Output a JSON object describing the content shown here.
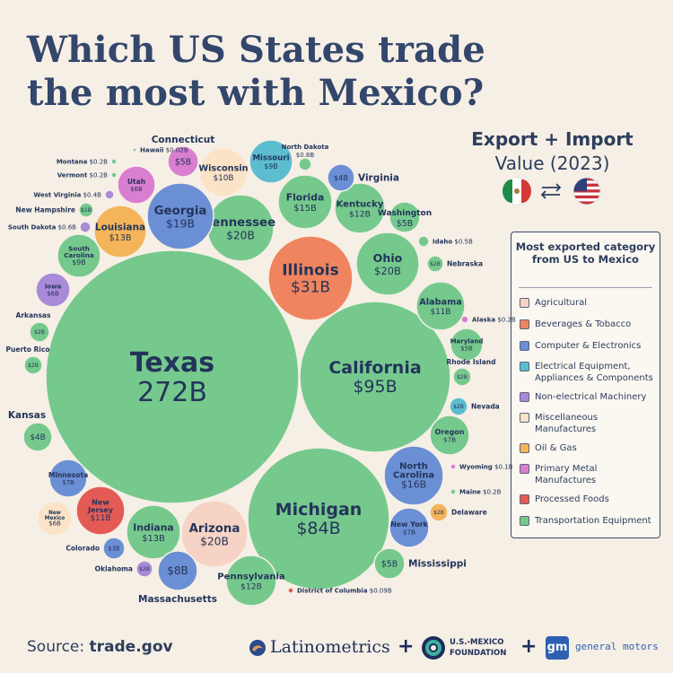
{
  "title_line1": "Which US States trade",
  "title_line2": "the most with Mexico?",
  "subtitle_bold": "Export + Import",
  "subtitle_rest_a": "Value",
  "subtitle_rest_b": "(2023)",
  "legend": {
    "title": "Most exported category from US to Mexico",
    "items": [
      {
        "label": "Agricultural",
        "color": "#f6d3c4"
      },
      {
        "label": "Beverages & Tobacco",
        "color": "#f0845e"
      },
      {
        "label": "Computer & Electronics",
        "color": "#6b8fd4"
      },
      {
        "label": "Electrical Equipment, Appliances & Components",
        "color": "#5dbdd0"
      },
      {
        "label": "Non-electrical Machinery",
        "color": "#a98ad8"
      },
      {
        "label": "Miscellaneous Manufactures",
        "color": "#fbe3c7"
      },
      {
        "label": "Oil & Gas",
        "color": "#f4b55a"
      },
      {
        "label": "Primary Metal Manufactures",
        "color": "#d97ed0"
      },
      {
        "label": "Processed Foods",
        "color": "#e45a55"
      },
      {
        "label": "Transportation Equipment",
        "color": "#76c98d"
      }
    ]
  },
  "chart_data": {
    "type": "bubble",
    "unit": "USD billions",
    "points": [
      {
        "state": "Texas",
        "value_label": "272B",
        "value": 272,
        "category": "Transportation Equipment"
      },
      {
        "state": "California",
        "value_label": "$95B",
        "value": 95,
        "category": "Transportation Equipment"
      },
      {
        "state": "Michigan",
        "value_label": "$84B",
        "value": 84,
        "category": "Transportation Equipment"
      },
      {
        "state": "Illinois",
        "value_label": "$31B",
        "value": 31,
        "category": "Beverages & Tobacco"
      },
      {
        "state": "Ohio",
        "value_label": "$20B",
        "value": 20,
        "category": "Transportation Equipment"
      },
      {
        "state": "Tennessee",
        "value_label": "$20B",
        "value": 20,
        "category": "Transportation Equipment"
      },
      {
        "state": "Arizona",
        "value_label": "$20B",
        "value": 20,
        "category": "Agricultural"
      },
      {
        "state": "Georgia",
        "value_label": "$19B",
        "value": 19,
        "category": "Computer & Electronics"
      },
      {
        "state": "North Carolina",
        "value_label": "$16B",
        "value": 16,
        "category": "Computer & Electronics"
      },
      {
        "state": "Florida",
        "value_label": "$15B",
        "value": 15,
        "category": "Transportation Equipment"
      },
      {
        "state": "Louisiana",
        "value_label": "$13B",
        "value": 13,
        "category": "Oil & Gas"
      },
      {
        "state": "Indiana",
        "value_label": "$13B",
        "value": 13,
        "category": "Transportation Equipment"
      },
      {
        "state": "Kentucky",
        "value_label": "$12B",
        "value": 12,
        "category": "Transportation Equipment"
      },
      {
        "state": "Pennsylvania",
        "value_label": "$12B",
        "value": 12,
        "category": "Transportation Equipment"
      },
      {
        "state": "Alabama",
        "value_label": "$11B",
        "value": 11,
        "category": "Transportation Equipment"
      },
      {
        "state": "New Jersey",
        "value_label": "$11B",
        "value": 11,
        "category": "Processed Foods"
      },
      {
        "state": "Wisconsin",
        "value_label": "$10B",
        "value": 10,
        "category": "Miscellaneous Manufactures"
      },
      {
        "state": "Missouri",
        "value_label": "$9B",
        "value": 9,
        "category": "Electrical Equipment, Appliances & Components"
      },
      {
        "state": "South Carolina",
        "value_label": "$9B",
        "value": 9,
        "category": "Transportation Equipment"
      },
      {
        "state": "Massachusetts",
        "value_label": "$8B",
        "value": 8,
        "category": "Computer & Electronics"
      },
      {
        "state": "Minnesota",
        "value_label": "$7B",
        "value": 7,
        "category": "Computer & Electronics"
      },
      {
        "state": "Oregon",
        "value_label": "$7B",
        "value": 7,
        "category": "Transportation Equipment"
      },
      {
        "state": "New York",
        "value_label": "$7B",
        "value": 7,
        "category": "Computer & Electronics"
      },
      {
        "state": "Utah",
        "value_label": "$6B",
        "value": 6,
        "category": "Primary Metal Manufactures"
      },
      {
        "state": "Iowa",
        "value_label": "$6B",
        "value": 6,
        "category": "Non-electrical Machinery"
      },
      {
        "state": "New Mexico",
        "value_label": "$6B",
        "value": 6,
        "category": "Miscellaneous Manufactures"
      },
      {
        "state": "Connecticut",
        "value_label": "$5B",
        "value": 5,
        "category": "Primary Metal Manufactures"
      },
      {
        "state": "Washington",
        "value_label": "$5B",
        "value": 5,
        "category": "Transportation Equipment"
      },
      {
        "state": "Maryland",
        "value_label": "$5B",
        "value": 5,
        "category": "Transportation Equipment"
      },
      {
        "state": "Mississippi",
        "value_label": "$5B",
        "value": 5,
        "category": "Transportation Equipment"
      },
      {
        "state": "Virginia",
        "value_label": "$4B",
        "value": 4,
        "category": "Computer & Electronics"
      },
      {
        "state": "Kansas",
        "value_label": "$4B",
        "value": 4,
        "category": "Transportation Equipment"
      },
      {
        "state": "Colorado",
        "value_label": "$3B",
        "value": 3,
        "category": "Computer & Electronics"
      },
      {
        "state": "Arkansas",
        "value_label": "$2B",
        "value": 2,
        "category": "Transportation Equipment"
      },
      {
        "state": "Puerto Rico",
        "value_label": "$2B",
        "value": 2,
        "category": "Transportation Equipment"
      },
      {
        "state": "Nebraska",
        "value_label": "$2B",
        "value": 2,
        "category": "Transportation Equipment"
      },
      {
        "state": "Rhode Island",
        "value_label": "$2B",
        "value": 2,
        "category": "Transportation Equipment"
      },
      {
        "state": "Nevada",
        "value_label": "$2B",
        "value": 2,
        "category": "Electrical Equipment, Appliances & Components"
      },
      {
        "state": "Delaware",
        "value_label": "$2B",
        "value": 2,
        "category": "Oil & Gas"
      },
      {
        "state": "Oklahoma",
        "value_label": "$2B",
        "value": 2,
        "category": "Non-electrical Machinery"
      },
      {
        "state": "New Hampshire",
        "value_label": "$1B",
        "value": 1,
        "category": "Transportation Equipment"
      },
      {
        "state": "North Dakota",
        "value_label": "$0.8B",
        "value": 0.8,
        "category": "Transportation Equipment"
      },
      {
        "state": "South Dakota",
        "value_label": "$0.6B",
        "value": 0.6,
        "category": "Non-electrical Machinery"
      },
      {
        "state": "Idaho",
        "value_label": "$0.5B",
        "value": 0.5,
        "category": "Transportation Equipment"
      },
      {
        "state": "West Virginia",
        "value_label": "$0.4B",
        "value": 0.4,
        "category": "Non-electrical Machinery"
      },
      {
        "state": "Montana",
        "value_label": "$0.2B",
        "value": 0.2,
        "category": "Transportation Equipment"
      },
      {
        "state": "Vermont",
        "value_label": "$0.2B",
        "value": 0.2,
        "category": "Transportation Equipment"
      },
      {
        "state": "Alaska",
        "value_label": "$0.2B",
        "value": 0.2,
        "category": "Primary Metal Manufactures"
      },
      {
        "state": "Maine",
        "value_label": "$0.2B",
        "value": 0.2,
        "category": "Transportation Equipment"
      },
      {
        "state": "Wyoming",
        "value_label": "$0.1B",
        "value": 0.1,
        "category": "Primary Metal Manufactures"
      },
      {
        "state": "District of Columbia",
        "value_label": "$0.09B",
        "value": 0.09,
        "category": "Processed Foods"
      },
      {
        "state": "Hawaii",
        "value_label": "$0.02B",
        "value": 0.02,
        "category": "Transportation Equipment"
      }
    ]
  },
  "footer": {
    "source_label": "Source:",
    "source_value": "trade.gov",
    "logo1": "Latinometrics",
    "logo2_line1": "U.S.-MEXICO",
    "logo2_line2": "FOUNDATION",
    "logo3_mark": "gm",
    "logo3": "general motors",
    "plus": "+"
  }
}
